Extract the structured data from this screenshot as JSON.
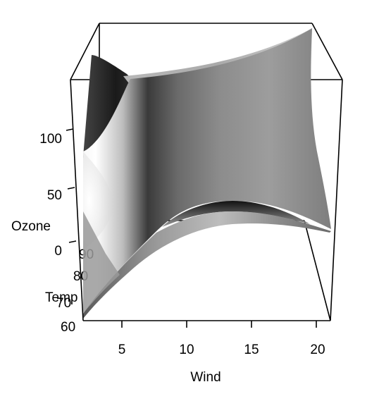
{
  "chart_data": {
    "type": "surface3d",
    "title": "",
    "xlabel": "Wind",
    "ylabel": "Temp",
    "zlabel": "Ozone",
    "x_ticks": [
      5,
      10,
      15,
      20
    ],
    "y_ticks": [
      60,
      70,
      80,
      90
    ],
    "z_ticks": [
      0,
      50,
      100
    ],
    "xlim": [
      2,
      21
    ],
    "ylim": [
      56,
      97
    ],
    "zlim": [
      -10,
      170
    ],
    "shading": "grayscale",
    "grid": false
  }
}
